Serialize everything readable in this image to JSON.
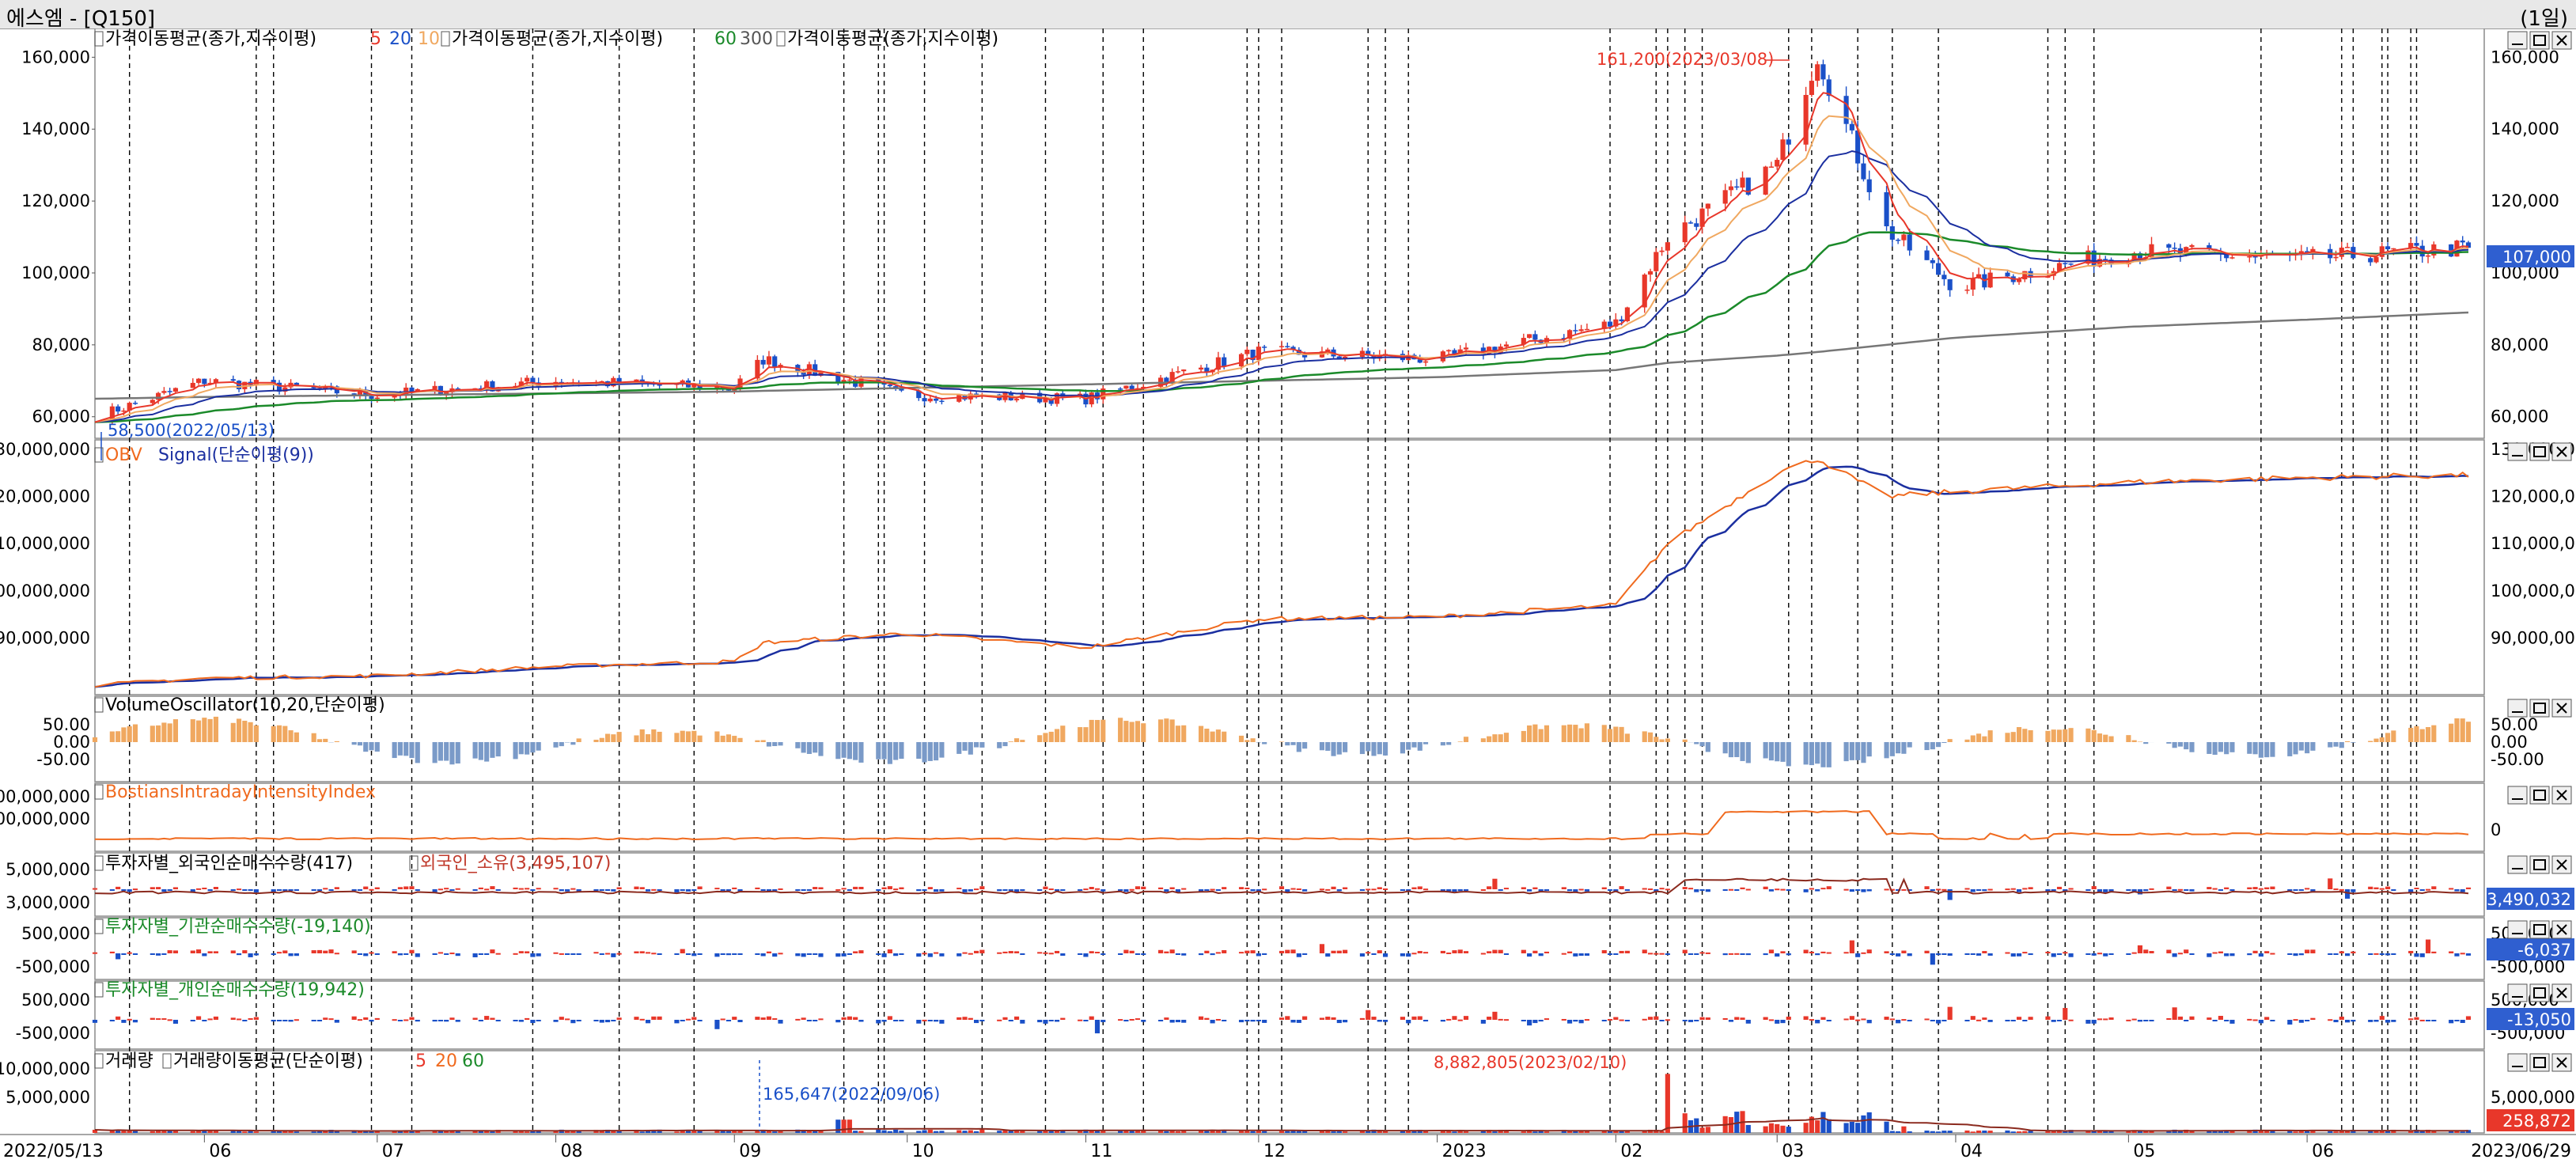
{
  "window": {
    "title": "에스엠 - [Q150]",
    "period": "(1일)"
  },
  "colors": {
    "up": "#e8372a",
    "down": "#1a50c8",
    "ma5": "#e8372a",
    "ma20": "#f07a1e",
    "ma60": "#1b8a2a",
    "ma300": "#777777",
    "signal": "#1b2fa0",
    "obv": "#f06a1e",
    "posc": "#f0a860",
    "negc": "#7a9ac8",
    "grid": "#000000"
  },
  "x_axis": {
    "start": "2022/05/13",
    "end": "2023/06/29",
    "ticks": [
      "06",
      "07",
      "08",
      "09",
      "10",
      "11",
      "12",
      "2023",
      "02",
      "03",
      "04",
      "05",
      "06"
    ]
  },
  "panels": {
    "price": {
      "legend": [
        {
          "label": "가격이동평균(종가,지수이평)",
          "params": [
            "5",
            "20",
            "10"
          ]
        },
        {
          "label": "가격이동평균(종가,지수이평)",
          "params": [
            "60",
            "300"
          ]
        },
        {
          "label": "가격이동평균(종가,지수이평)",
          "params": []
        }
      ],
      "ticks": [
        "160,000",
        "140,000",
        "120,000",
        "100,000",
        "80,000",
        "60,000"
      ],
      "high_label": "161,200(2023/03/08)",
      "low_label": "58,500(2022/05/13)",
      "last_value": "107,000"
    },
    "obv": {
      "legend": [
        "OBV",
        "Signal(단순이평(9))"
      ],
      "ticks_left": [
        "30,000,000",
        "20,000,000",
        "10,000,000",
        "00,000,000",
        "90,000,000"
      ],
      "ticks_right": [
        "130,000,000",
        "120,000,000",
        "110,000,000",
        "100,000,000",
        "90,000,000"
      ]
    },
    "vosc": {
      "legend": "VolumeOscillator(10,20,단순이평)",
      "ticks_left": [
        "50.00",
        "0.00",
        "-50.00"
      ],
      "ticks_right": [
        "50.00",
        "0.00",
        "-50.00"
      ]
    },
    "bii": {
      "legend": "BostiansIntradayIntensityIndex",
      "ticks_left": [
        "00,000,000",
        "00,000,000"
      ],
      "ticks_right": [
        "0"
      ]
    },
    "foreign": {
      "legend_a": "투자자별_외국인순매수수량(417)",
      "legend_b": "외국인_소유(3,495,107)",
      "ticks_left": [
        "5,000,000",
        "3,000,000"
      ],
      "last_value": "3,490,032"
    },
    "inst": {
      "legend": "투자자별_기관순매수수량(-19,140)",
      "ticks_left": [
        "500,000",
        "-500,000"
      ],
      "ticks_right": [
        "500,000",
        "-500,000"
      ],
      "last_value": "-6,037"
    },
    "indiv": {
      "legend": "투자자별_개인순매수수량(19,942)",
      "ticks_left": [
        "500,000",
        "-500,000"
      ],
      "ticks_right": [
        "500,000",
        "-500,000"
      ],
      "last_value": "-13,050"
    },
    "volume": {
      "legend_a": "거래량",
      "legend_b": "거래량이동평균(단순이평)",
      "params": [
        "5",
        "20",
        "60"
      ],
      "ticks_left": [
        "10,000,000",
        "5,000,000"
      ],
      "ticks_right": [
        "5,000,000"
      ],
      "max_label": "8,882,805(2023/02/10)",
      "min_label": "165,647(2022/09/06)",
      "last_value": "258,872"
    }
  },
  "chart_data": {
    "type": "candlestick",
    "x": [
      "2022/05/13",
      "2022/06/01",
      "2022/07/01",
      "2022/08/01",
      "2022/09/01",
      "2022/09/06",
      "2022/10/01",
      "2022/11/01",
      "2022/12/01",
      "2023/01/01",
      "2023/02/01",
      "2023/02/10",
      "2023/03/01",
      "2023/03/08",
      "2023/03/20",
      "2023/04/01",
      "2023/05/01",
      "2023/06/01",
      "2023/06/29"
    ],
    "close": [
      60000,
      70000,
      66000,
      70000,
      68000,
      76000,
      66000,
      65000,
      78000,
      76000,
      86000,
      110000,
      130000,
      161200,
      112000,
      96000,
      106000,
      104000,
      107000
    ],
    "ma300": [
      65000,
      65500,
      66000,
      66500,
      67000,
      67200,
      68000,
      69000,
      70000,
      71000,
      73000,
      75000,
      77000,
      78000,
      80000,
      82000,
      85000,
      87000,
      89000
    ],
    "obv": [
      80000000,
      81500000,
      82000000,
      84000000,
      85000000,
      89000000,
      91000000,
      88000000,
      94000000,
      94500000,
      97000000,
      110000000,
      125000000,
      128000000,
      120000000,
      121000000,
      123000000,
      124000000,
      124500000
    ],
    "high": {
      "value": 161200,
      "date": "2023/03/08"
    },
    "low": {
      "value": 58500,
      "date": "2022/05/13"
    },
    "volume_max": {
      "value": 8882805,
      "date": "2023/02/10"
    },
    "volume_min": {
      "value": 165647,
      "date": "2022/09/06"
    },
    "last_close": 107000
  }
}
